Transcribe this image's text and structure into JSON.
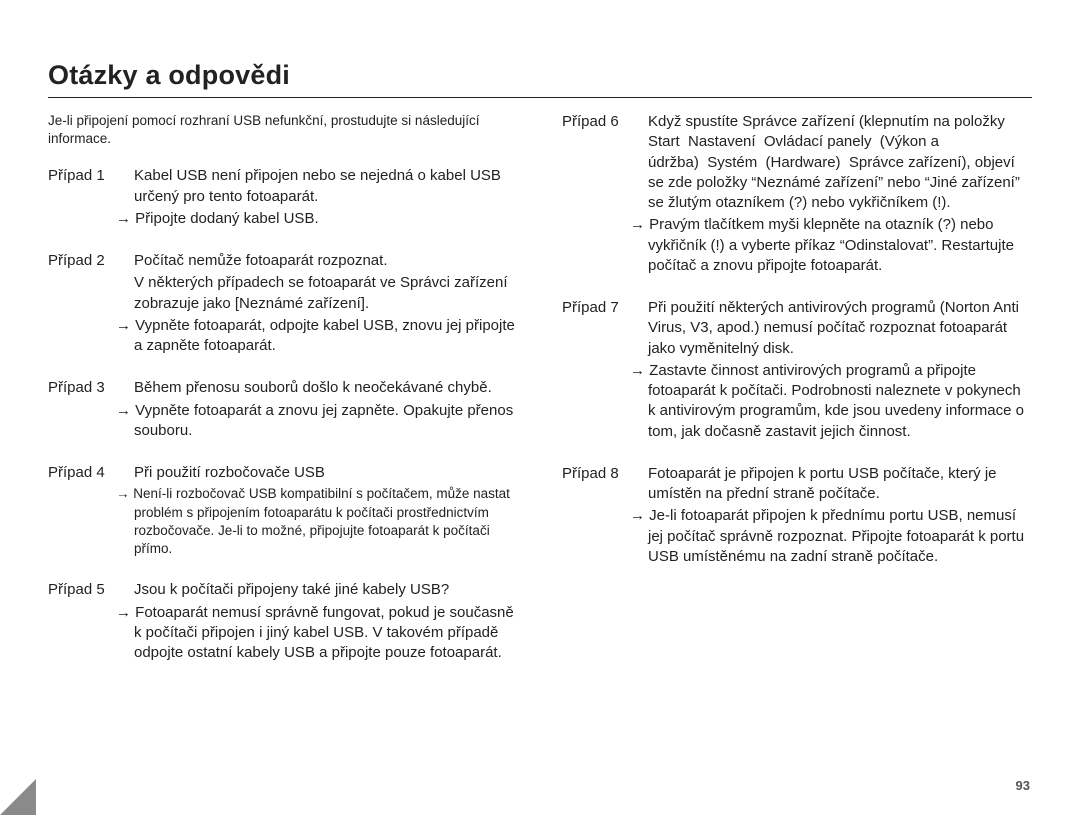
{
  "title": "Otázky a odpovědi",
  "intro": "Je-li připojení pomocí rozhraní USB nefunkční, prostudujte si následující informace.",
  "arrow": "→",
  "pageNumber": "93",
  "left": [
    {
      "label": "Případ 1",
      "p1": "Kabel USB není připojen nebo se nejedná o kabel USB určený pro tento fotoaparát.",
      "s1": "Připojte dodaný kabel USB."
    },
    {
      "label": "Případ 2",
      "p1": "Počítač nemůže fotoaparát rozpoznat.",
      "p2": "V některých případech se fotoaparát ve Správci zařízení zobrazuje jako [Neznámé zařízení].",
      "s1": "Vypněte fotoaparát, odpojte kabel USB, znovu jej připojte a zapněte fotoaparát."
    },
    {
      "label": "Případ 3",
      "p1": "Během přenosu souborů došlo k neočekávané chybě.",
      "s1": "Vypněte fotoaparát a znovu jej zapněte. Opakujte přenos souboru."
    },
    {
      "label": "Případ 4",
      "p1": "Při použití rozbočovače USB",
      "s1": "Není-li rozbočovač USB kompatibilní s počítačem, může nastat problém s připojením fotoaparátu k počítači prostřednictvím rozbočovače. Je-li to možné, připojujte fotoaparát k počítači přímo.",
      "small": true
    },
    {
      "label": "Případ 5",
      "p1": "Jsou k počítači připojeny také jiné kabely USB?",
      "s1": "Fotoaparát nemusí správně fungovat, pokud je současně k počítači připojen i jiný kabel USB. V takovém případě odpojte ostatní kabely USB a připojte pouze fotoaparát."
    }
  ],
  "right": [
    {
      "label": "Případ 6",
      "p1": "Když spustíte Správce zařízení (klepnutím na položky Start  Nastavení  Ovládací panely  (Výkon a údržba)  Systém  (Hardware)  Správce zařízení), objeví se zde položky “Neznámé zařízení” nebo “Jiné zařízení” se žlutým otazníkem (?) nebo vykřičníkem (!).",
      "s1": "Pravým tlačítkem myši klepněte na otazník (?) nebo vykřičník (!) a vyberte příkaz “Odinstalovat”. Restartujte počítač a znovu připojte fotoaparát."
    },
    {
      "label": "Případ 7",
      "p1": "Při použití některých antivirových programů (Norton Anti Virus, V3, apod.) nemusí počítač rozpoznat fotoaparát jako vyměnitelný disk.",
      "s1": "Zastavte činnost antivirových programů a připojte fotoaparát k počítači. Podrobnosti naleznete v pokynech k antivirovým programům, kde jsou uvedeny informace o tom, jak dočasně zastavit jejich činnost."
    },
    {
      "label": "Případ 8",
      "p1": "Fotoaparát je připojen k portu USB počítače, který je umístěn na přední straně počítače.",
      "s1": "Je-li fotoaparát připojen k přednímu portu USB, nemusí jej počítač správně rozpoznat. Připojte fotoaparát k portu USB umístěnému na zadní straně počítače."
    }
  ]
}
